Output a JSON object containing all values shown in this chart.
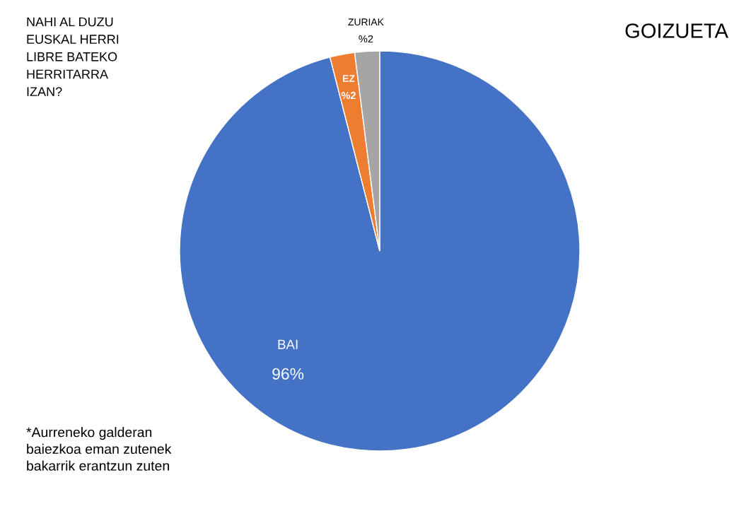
{
  "chart_data": {
    "type": "pie",
    "title": "GOIZUETA",
    "subtitle": "NAHI AL DUZU\nEUSKAL HERRI\nLIBRE BATEKO\nHERRITARRA\nIZAN?",
    "categories": [
      "BAI",
      "EZ",
      "ZURIAK"
    ],
    "values": [
      96,
      2,
      2
    ],
    "colors": [
      "#4472c4",
      "#ed7d31",
      "#a5a5a5"
    ],
    "value_labels": [
      "96%",
      "%2",
      "%2"
    ],
    "annotations": [
      "*Aurreneko galderan\nbaiezkoa eman zutenek\nbakarrik erantzun zuten"
    ]
  }
}
